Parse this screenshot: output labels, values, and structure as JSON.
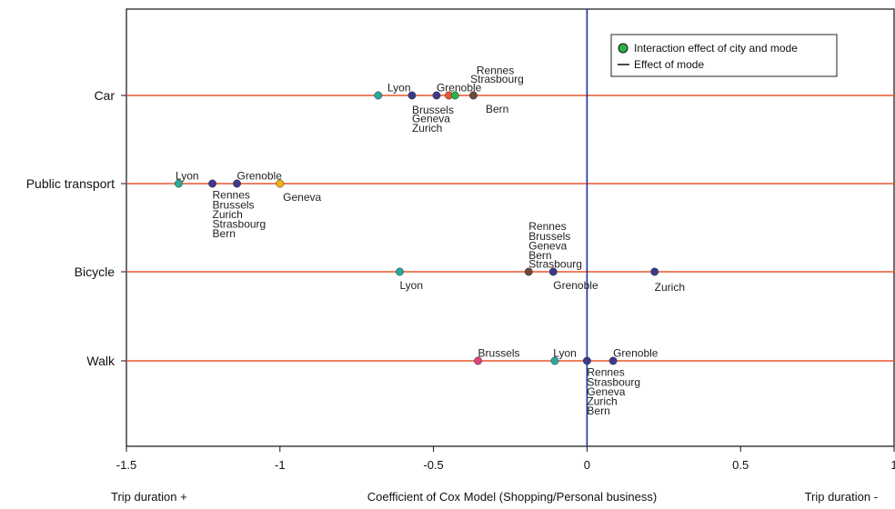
{
  "chart_data": {
    "type": "scatter",
    "xlabel": "Coefficient of Cox Model (Shopping/Personal business)",
    "xlabel_left": "Trip duration +",
    "xlabel_right": "Trip duration -",
    "xlim": [
      -1.5,
      1
    ],
    "xticks": [
      "-1.5",
      "-1",
      "-0.5",
      "0",
      "0.5",
      "1"
    ],
    "categories": [
      "Car",
      "Public transport",
      "Bicycle",
      "Walk"
    ],
    "mode_effect_line_x": 0,
    "legend": {
      "position": "top-right",
      "entries": [
        "Interaction effect of city and mode",
        "Effect of mode"
      ]
    },
    "series": [
      {
        "category": "Car",
        "points": [
          {
            "x": -0.68,
            "color": "#2ba89a"
          },
          {
            "x": -0.57,
            "color": "#3d3a8c"
          },
          {
            "x": -0.49,
            "color": "#3d3a8c"
          },
          {
            "x": -0.45,
            "color": "#e8572d"
          },
          {
            "x": -0.43,
            "color": "#2bb14a"
          },
          {
            "x": -0.37,
            "color": "#6e4a3a"
          }
        ],
        "labels": [
          {
            "text": "Lyon",
            "x": -0.65,
            "row": -0.8
          },
          {
            "text": "Rennes",
            "x": -0.36,
            "row": -2.6
          },
          {
            "text": "Strasbourg",
            "x": -0.38,
            "row": -1.7
          },
          {
            "text": "Grenoble",
            "x": -0.49,
            "row": -0.8
          },
          {
            "text": "Bern",
            "x": -0.33,
            "row": 1.4
          },
          {
            "text": "Brussels",
            "x": -0.57,
            "row": 1.5
          },
          {
            "text": "Geneva",
            "x": -0.57,
            "row": 2.4
          },
          {
            "text": "Zurich",
            "x": -0.57,
            "row": 3.4
          }
        ]
      },
      {
        "category": "Public transport",
        "points": [
          {
            "x": -1.33,
            "color": "#2ba89a"
          },
          {
            "x": -1.22,
            "color": "#3d3a8c"
          },
          {
            "x": -1.14,
            "color": "#3d3a8c"
          },
          {
            "x": -1.0,
            "color": "#f0b21b"
          }
        ],
        "labels": [
          {
            "text": "Lyon",
            "x": -1.34,
            "row": -0.8
          },
          {
            "text": "Grenoble",
            "x": -1.14,
            "row": -0.8
          },
          {
            "text": "Geneva",
            "x": -0.99,
            "row": 1.4
          },
          {
            "text": "Rennes",
            "x": -1.22,
            "row": 1.2
          },
          {
            "text": "Brussels",
            "x": -1.22,
            "row": 2.2
          },
          {
            "text": "Zurich",
            "x": -1.22,
            "row": 3.2
          },
          {
            "text": "Strasbourg",
            "x": -1.22,
            "row": 4.2
          },
          {
            "text": "Bern",
            "x": -1.22,
            "row": 5.2
          }
        ]
      },
      {
        "category": "Bicycle",
        "points": [
          {
            "x": -0.61,
            "color": "#2ba89a"
          },
          {
            "x": -0.19,
            "color": "#6e4a3a"
          },
          {
            "x": -0.11,
            "color": "#3d3a8c"
          },
          {
            "x": 0.22,
            "color": "#3d3a8c"
          }
        ],
        "labels": [
          {
            "text": "Rennes",
            "x": -0.19,
            "row": -4.7
          },
          {
            "text": "Brussels",
            "x": -0.19,
            "row": -3.7
          },
          {
            "text": "Geneva",
            "x": -0.19,
            "row": -2.7
          },
          {
            "text": "Bern",
            "x": -0.19,
            "row": -1.7
          },
          {
            "text": "Strasbourg",
            "x": -0.19,
            "row": -0.8
          },
          {
            "text": "Lyon",
            "x": -0.61,
            "row": 1.4
          },
          {
            "text": "Grenoble",
            "x": -0.11,
            "row": 1.4
          },
          {
            "text": "Zurich",
            "x": 0.22,
            "row": 1.6
          }
        ]
      },
      {
        "category": "Walk",
        "points": [
          {
            "x": -0.355,
            "color": "#d9457a"
          },
          {
            "x": -0.105,
            "color": "#2ba89a"
          },
          {
            "x": 0.0,
            "color": "#3d3a8c"
          },
          {
            "x": 0.085,
            "color": "#3d3a8c"
          }
        ],
        "labels": [
          {
            "text": "Brussels",
            "x": -0.355,
            "row": -0.8
          },
          {
            "text": "Lyon",
            "x": -0.11,
            "row": -0.8
          },
          {
            "text": "Grenoble",
            "x": 0.085,
            "row": -0.8
          },
          {
            "text": "Rennes",
            "x": 0.0,
            "row": 1.2
          },
          {
            "text": "Strasbourg",
            "x": 0.0,
            "row": 2.2
          },
          {
            "text": "Geneva",
            "x": 0.0,
            "row": 3.2
          },
          {
            "text": "Zurich",
            "x": 0.0,
            "row": 4.2
          },
          {
            "text": "Bern",
            "x": 0.0,
            "row": 5.2
          }
        ]
      }
    ]
  },
  "colors": {
    "mode_line": "#e8572d",
    "zero_line": "#1f2f9e",
    "legend_dot": "#2bb14a"
  }
}
